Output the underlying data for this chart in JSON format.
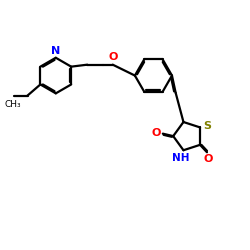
{
  "bg_color": "#ffffff",
  "bond_color": "#000000",
  "N_color": "#0000ff",
  "O_color": "#ff0000",
  "S_color": "#808000",
  "linewidth": 1.6,
  "figsize": [
    2.5,
    2.5
  ],
  "dpi": 100,
  "xlim": [
    0,
    10
  ],
  "ylim": [
    0,
    10
  ]
}
